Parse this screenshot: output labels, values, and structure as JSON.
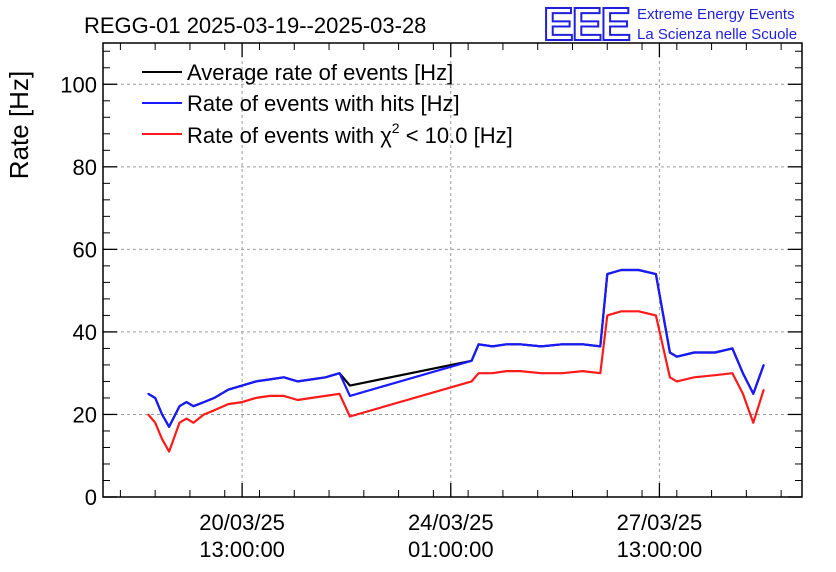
{
  "chart_data": {
    "type": "line",
    "title": "REGG-01 2025-03-19--2025-03-28",
    "ylabel": "Rate [Hz]",
    "xlabel": "",
    "ylim": [
      0,
      110
    ],
    "yticks": [
      0,
      20,
      40,
      60,
      80,
      100
    ],
    "y_tick_labels": [
      "0",
      "20",
      "40",
      "60",
      "80",
      "100"
    ],
    "xlim_days": [
      0,
      10.05
    ],
    "xticks": [
      {
        "day": 2.0,
        "date": "20/03/25",
        "time": "13:00:00"
      },
      {
        "day": 5.0,
        "date": "24/03/25",
        "time": "01:00:00"
      },
      {
        "day": 8.0,
        "date": "27/03/25",
        "time": "13:00:00"
      }
    ],
    "grid": true,
    "legend_position": "top-left",
    "legend": {
      "black": "Average rate of events [Hz]",
      "blue": "Rate of events with hits [Hz]",
      "red_prefix": "Rate of events with ",
      "red_chi": "χ",
      "red_exp": "2",
      "red_suffix": " < 10.0 [Hz]"
    },
    "series": [
      {
        "name": "Average rate of events [Hz]",
        "color": "#000000",
        "x": [
          0.65,
          0.75,
          0.85,
          0.95,
          1.1,
          1.2,
          1.3,
          1.45,
          1.6,
          1.8,
          2.0,
          2.2,
          2.4,
          2.6,
          2.8,
          3.0,
          3.2,
          3.4,
          3.55,
          5.3,
          5.4,
          5.6,
          5.8,
          6.0,
          6.3,
          6.6,
          6.9,
          7.15,
          7.25,
          7.45,
          7.7,
          7.95,
          8.15,
          8.25,
          8.5,
          8.8,
          9.05,
          9.2,
          9.35,
          9.5
        ],
        "y": [
          25,
          24,
          20,
          17,
          22,
          23,
          22,
          23,
          24,
          26,
          27,
          28,
          28.5,
          29,
          28,
          28.5,
          29,
          30,
          27,
          33,
          37,
          36.5,
          37,
          37,
          36.5,
          37,
          37,
          36.5,
          54,
          55,
          55,
          54,
          35,
          34,
          35,
          35,
          36,
          30,
          25,
          32
        ],
        "values_note": "matches hits series except bridge segment"
      },
      {
        "name": "Rate of events with hits [Hz]",
        "color": "#1a1aff",
        "x": [
          0.65,
          0.75,
          0.85,
          0.95,
          1.1,
          1.2,
          1.3,
          1.45,
          1.6,
          1.8,
          2.0,
          2.2,
          2.4,
          2.6,
          2.8,
          3.0,
          3.2,
          3.4,
          3.55,
          5.3,
          5.4,
          5.6,
          5.8,
          6.0,
          6.3,
          6.6,
          6.9,
          7.15,
          7.25,
          7.45,
          7.7,
          7.95,
          8.15,
          8.25,
          8.5,
          8.8,
          9.05,
          9.2,
          9.35,
          9.5
        ],
        "y": [
          25,
          24,
          20,
          17,
          22,
          23,
          22,
          23,
          24,
          26,
          27,
          28,
          28.5,
          29,
          28,
          28.5,
          29,
          30,
          24.5,
          33,
          37,
          36.5,
          37,
          37,
          36.5,
          37,
          37,
          36.5,
          54,
          55,
          55,
          54,
          35,
          34,
          35,
          35,
          36,
          30,
          25,
          32
        ]
      },
      {
        "name": "Rate of events with χ2 < 10.0 [Hz]",
        "color": "#ff1a1a",
        "x": [
          0.65,
          0.75,
          0.85,
          0.95,
          1.1,
          1.2,
          1.3,
          1.45,
          1.6,
          1.8,
          2.0,
          2.2,
          2.4,
          2.6,
          2.8,
          3.0,
          3.2,
          3.4,
          3.55,
          5.3,
          5.4,
          5.6,
          5.8,
          6.0,
          6.3,
          6.6,
          6.9,
          7.15,
          7.25,
          7.45,
          7.7,
          7.95,
          8.15,
          8.25,
          8.5,
          8.8,
          9.05,
          9.2,
          9.35,
          9.5
        ],
        "y": [
          20,
          18,
          14,
          11,
          18,
          19,
          18,
          20,
          21,
          22.5,
          23,
          24,
          24.5,
          24.5,
          23.5,
          24,
          24.5,
          25,
          19.5,
          28,
          30,
          30,
          30.5,
          30.5,
          30,
          30,
          30.5,
          30,
          44,
          45,
          45,
          44,
          29,
          28,
          29,
          29.5,
          30,
          25,
          18,
          26
        ]
      }
    ],
    "logo": {
      "mark": "EEE",
      "line1": "Extreme Energy Events",
      "line2": "La Scienza nelle Scuole"
    }
  }
}
